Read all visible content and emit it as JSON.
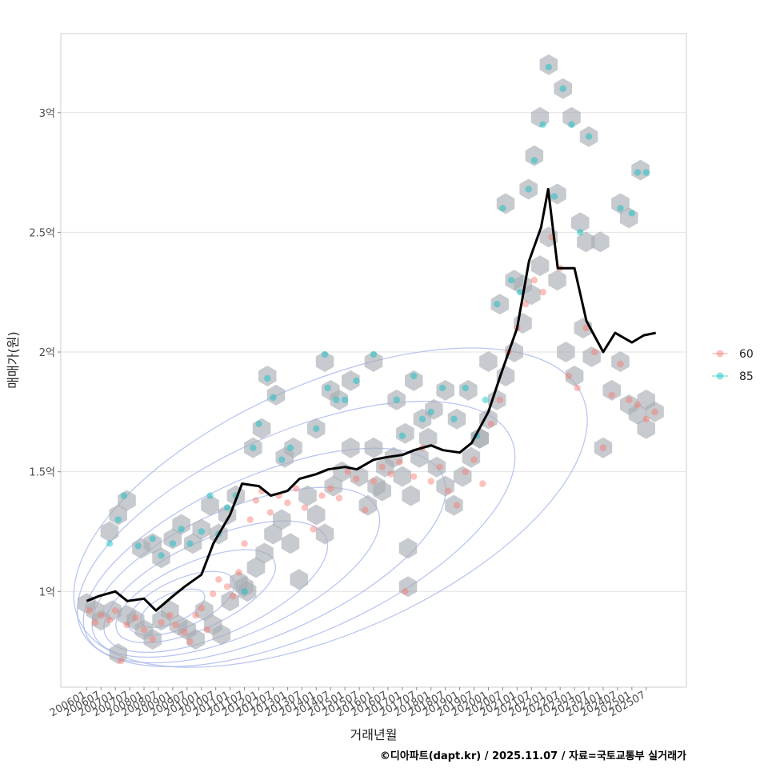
{
  "chart_data": {
    "type": "scatter",
    "xlabel": "거래년월",
    "ylabel": "매매가(원)",
    "caption": "©디아파트(dapt.kr) / 2025.11.07 / 자료=국토교통부 실거래가",
    "x_range": [
      "2006-01",
      "2025-11"
    ],
    "ylim": [
      0.6,
      3.33
    ],
    "y_ticks": [
      {
        "value": 1,
        "label": "1억"
      },
      {
        "value": 1.5,
        "label": "1.5억"
      },
      {
        "value": 2,
        "label": "2억"
      },
      {
        "value": 2.5,
        "label": "2.5억"
      },
      {
        "value": 3,
        "label": "3억"
      }
    ],
    "x_ticks": [
      "200601",
      "200607",
      "200701",
      "200707",
      "200801",
      "200807",
      "200901",
      "200907",
      "201001",
      "201007",
      "201101",
      "201107",
      "201201",
      "201207",
      "201301",
      "201307",
      "201401",
      "201407",
      "201501",
      "201507",
      "201601",
      "201607",
      "201701",
      "201707",
      "201801",
      "201807",
      "201901",
      "201907",
      "202001",
      "202007",
      "202101",
      "202107",
      "202201",
      "202207",
      "202301",
      "202307",
      "202401",
      "202407",
      "202501",
      "202507"
    ],
    "legend": [
      {
        "name": "60",
        "color": "#F8766D"
      },
      {
        "name": "85",
        "color": "#00BFC4"
      }
    ],
    "line_series": {
      "name": "moving-average",
      "color": "#000000",
      "x": [
        "2006-01",
        "2006-06",
        "2007-01",
        "2007-06",
        "2008-01",
        "2008-06",
        "2009-01",
        "2009-06",
        "2010-01",
        "2010-06",
        "2011-01",
        "2011-06",
        "2012-01",
        "2012-06",
        "2013-01",
        "2013-06",
        "2014-01",
        "2014-06",
        "2015-01",
        "2015-06",
        "2016-01",
        "2016-06",
        "2017-01",
        "2017-06",
        "2018-01",
        "2018-06",
        "2019-01",
        "2019-06",
        "2020-01",
        "2020-06",
        "2021-01",
        "2021-06",
        "2021-11",
        "2022-02",
        "2022-06",
        "2023-01",
        "2023-06",
        "2024-01",
        "2024-06",
        "2025-01",
        "2025-06",
        "2025-11"
      ],
      "y": [
        0.96,
        0.98,
        1.0,
        0.96,
        0.97,
        0.92,
        0.98,
        1.02,
        1.07,
        1.2,
        1.32,
        1.45,
        1.44,
        1.4,
        1.42,
        1.47,
        1.49,
        1.51,
        1.52,
        1.51,
        1.55,
        1.56,
        1.57,
        1.59,
        1.61,
        1.59,
        1.58,
        1.62,
        1.75,
        1.9,
        2.1,
        2.38,
        2.52,
        2.68,
        2.35,
        2.35,
        2.13,
        2.0,
        2.08,
        2.04,
        2.07,
        2.08
      ]
    },
    "series": [
      {
        "name": "60",
        "points": [
          [
            2006.1,
            0.92
          ],
          [
            2006.3,
            0.87
          ],
          [
            2006.5,
            0.9
          ],
          [
            2006.8,
            0.88
          ],
          [
            2007.0,
            0.92
          ],
          [
            2007.2,
            0.71
          ],
          [
            2007.4,
            0.86
          ],
          [
            2007.7,
            0.89
          ],
          [
            2008.0,
            0.84
          ],
          [
            2008.3,
            0.8
          ],
          [
            2008.6,
            0.87
          ],
          [
            2008.9,
            0.9
          ],
          [
            2009.1,
            0.86
          ],
          [
            2009.4,
            0.83
          ],
          [
            2009.6,
            0.79
          ],
          [
            2009.8,
            0.9
          ],
          [
            2010.0,
            0.93
          ],
          [
            2010.2,
            0.84
          ],
          [
            2010.4,
            0.99
          ],
          [
            2010.6,
            1.05
          ],
          [
            2010.9,
            1.02
          ],
          [
            2011.1,
            0.98
          ],
          [
            2011.3,
            1.08
          ],
          [
            2011.5,
            1.2
          ],
          [
            2011.7,
            1.3
          ],
          [
            2011.9,
            1.38
          ],
          [
            2012.1,
            1.42
          ],
          [
            2012.4,
            1.33
          ],
          [
            2012.7,
            1.4
          ],
          [
            2013.0,
            1.37
          ],
          [
            2013.3,
            1.43
          ],
          [
            2013.6,
            1.35
          ],
          [
            2013.9,
            1.26
          ],
          [
            2014.2,
            1.4
          ],
          [
            2014.5,
            1.43
          ],
          [
            2014.8,
            1.39
          ],
          [
            2015.1,
            1.5
          ],
          [
            2015.4,
            1.47
          ],
          [
            2015.7,
            1.34
          ],
          [
            2016.0,
            1.46
          ],
          [
            2016.3,
            1.52
          ],
          [
            2016.6,
            1.49
          ],
          [
            2016.9,
            1.54
          ],
          [
            2017.1,
            1.0
          ],
          [
            2017.4,
            1.48
          ],
          [
            2017.7,
            1.6
          ],
          [
            2018.0,
            1.46
          ],
          [
            2018.3,
            1.52
          ],
          [
            2018.6,
            1.42
          ],
          [
            2018.9,
            1.36
          ],
          [
            2019.2,
            1.5
          ],
          [
            2019.5,
            1.55
          ],
          [
            2019.8,
            1.45
          ],
          [
            2020.1,
            1.7
          ],
          [
            2020.4,
            1.8
          ],
          [
            2020.7,
            2.0
          ],
          [
            2021.0,
            2.1
          ],
          [
            2021.3,
            2.2
          ],
          [
            2021.6,
            2.3
          ],
          [
            2021.9,
            2.25
          ],
          [
            2022.2,
            2.48
          ],
          [
            2022.5,
            2.35
          ],
          [
            2022.8,
            1.9
          ],
          [
            2023.1,
            1.85
          ],
          [
            2023.4,
            2.1
          ],
          [
            2023.7,
            2.0
          ],
          [
            2024.0,
            1.6
          ],
          [
            2024.3,
            1.82
          ],
          [
            2024.6,
            1.95
          ],
          [
            2024.9,
            1.8
          ],
          [
            2025.2,
            1.78
          ],
          [
            2025.5,
            1.72
          ],
          [
            2025.8,
            1.75
          ]
        ]
      },
      {
        "name": "85",
        "points": [
          [
            2006.8,
            1.2
          ],
          [
            2007.1,
            1.3
          ],
          [
            2007.3,
            1.4
          ],
          [
            2007.8,
            1.19
          ],
          [
            2008.3,
            1.22
          ],
          [
            2008.6,
            1.15
          ],
          [
            2009.0,
            1.2
          ],
          [
            2009.3,
            1.26
          ],
          [
            2009.6,
            1.2
          ],
          [
            2010.0,
            1.25
          ],
          [
            2010.3,
            1.4
          ],
          [
            2010.6,
            1.24
          ],
          [
            2010.9,
            1.35
          ],
          [
            2011.2,
            1.4
          ],
          [
            2011.5,
            1.0
          ],
          [
            2011.8,
            1.6
          ],
          [
            2012.0,
            1.7
          ],
          [
            2012.3,
            1.89
          ],
          [
            2012.5,
            1.81
          ],
          [
            2012.8,
            1.55
          ],
          [
            2013.1,
            1.6
          ],
          [
            2014.0,
            1.68
          ],
          [
            2014.3,
            1.99
          ],
          [
            2014.4,
            1.85
          ],
          [
            2014.7,
            1.8
          ],
          [
            2015.0,
            1.8
          ],
          [
            2015.4,
            1.88
          ],
          [
            2016.0,
            1.99
          ],
          [
            2016.8,
            1.8
          ],
          [
            2017.0,
            1.65
          ],
          [
            2017.4,
            1.9
          ],
          [
            2017.7,
            1.72
          ],
          [
            2018.0,
            1.75
          ],
          [
            2018.4,
            1.85
          ],
          [
            2018.8,
            1.72
          ],
          [
            2019.2,
            1.85
          ],
          [
            2019.6,
            1.65
          ],
          [
            2019.9,
            1.8
          ],
          [
            2020.3,
            2.2
          ],
          [
            2020.5,
            2.6
          ],
          [
            2020.8,
            2.3
          ],
          [
            2021.1,
            2.25
          ],
          [
            2021.4,
            2.68
          ],
          [
            2021.6,
            2.8
          ],
          [
            2021.9,
            2.95
          ],
          [
            2022.1,
            3.19
          ],
          [
            2022.3,
            2.65
          ],
          [
            2022.6,
            3.1
          ],
          [
            2022.9,
            2.95
          ],
          [
            2023.2,
            2.5
          ],
          [
            2023.5,
            2.9
          ],
          [
            2024.6,
            2.6
          ],
          [
            2025.0,
            2.58
          ],
          [
            2025.2,
            2.75
          ],
          [
            2025.5,
            2.75
          ]
        ]
      }
    ],
    "hexbins": [
      [
        2006.0,
        0.95
      ],
      [
        2006.3,
        0.92
      ],
      [
        2006.5,
        0.88
      ],
      [
        2006.9,
        0.92
      ],
      [
        2007.1,
        0.74
      ],
      [
        2007.4,
        0.9
      ],
      [
        2007.7,
        0.88
      ],
      [
        2008.0,
        0.84
      ],
      [
        2008.3,
        0.8
      ],
      [
        2008.6,
        0.88
      ],
      [
        2008.9,
        0.92
      ],
      [
        2009.2,
        0.86
      ],
      [
        2009.5,
        0.84
      ],
      [
        2009.8,
        0.8
      ],
      [
        2010.1,
        0.92
      ],
      [
        2010.4,
        0.86
      ],
      [
        2010.7,
        0.82
      ],
      [
        2011.0,
        0.96
      ],
      [
        2011.3,
        1.04
      ],
      [
        2011.6,
        1.0
      ],
      [
        2011.9,
        1.1
      ],
      [
        2012.2,
        1.16
      ],
      [
        2012.5,
        1.24
      ],
      [
        2012.8,
        1.3
      ],
      [
        2013.1,
        1.2
      ],
      [
        2013.4,
        1.05
      ],
      [
        2013.7,
        1.4
      ],
      [
        2014.0,
        1.32
      ],
      [
        2014.3,
        1.24
      ],
      [
        2014.6,
        1.44
      ],
      [
        2014.9,
        1.5
      ],
      [
        2015.2,
        1.6
      ],
      [
        2015.5,
        1.48
      ],
      [
        2015.8,
        1.36
      ],
      [
        2016.1,
        1.44
      ],
      [
        2016.4,
        1.52
      ],
      [
        2016.7,
        1.56
      ],
      [
        2017.0,
        1.48
      ],
      [
        2017.3,
        1.4
      ],
      [
        2017.6,
        1.56
      ],
      [
        2017.9,
        1.64
      ],
      [
        2018.2,
        1.52
      ],
      [
        2018.5,
        1.44
      ],
      [
        2018.8,
        1.36
      ],
      [
        2019.1,
        1.48
      ],
      [
        2019.4,
        1.56
      ],
      [
        2019.7,
        1.64
      ],
      [
        2020.0,
        1.72
      ],
      [
        2020.3,
        1.8
      ],
      [
        2020.6,
        1.9
      ],
      [
        2020.9,
        2.0
      ],
      [
        2021.2,
        2.12
      ],
      [
        2021.5,
        2.24
      ],
      [
        2021.8,
        2.36
      ],
      [
        2022.1,
        2.48
      ],
      [
        2022.4,
        2.3
      ],
      [
        2022.7,
        2.0
      ],
      [
        2023.0,
        1.9
      ],
      [
        2023.3,
        2.1
      ],
      [
        2023.6,
        1.98
      ],
      [
        2024.0,
        1.6
      ],
      [
        2024.3,
        1.84
      ],
      [
        2024.6,
        1.96
      ],
      [
        2024.9,
        1.78
      ],
      [
        2025.2,
        1.74
      ],
      [
        2025.5,
        1.8
      ],
      [
        2025.8,
        1.75
      ],
      [
        2006.8,
        1.25
      ],
      [
        2007.1,
        1.32
      ],
      [
        2007.4,
        1.38
      ],
      [
        2007.9,
        1.18
      ],
      [
        2008.3,
        1.2
      ],
      [
        2008.6,
        1.14
      ],
      [
        2009.0,
        1.22
      ],
      [
        2009.3,
        1.28
      ],
      [
        2009.7,
        1.2
      ],
      [
        2010.0,
        1.26
      ],
      [
        2010.3,
        1.36
      ],
      [
        2010.6,
        1.24
      ],
      [
        2010.9,
        1.32
      ],
      [
        2011.2,
        1.4
      ],
      [
        2011.5,
        1.02
      ],
      [
        2011.8,
        1.6
      ],
      [
        2012.1,
        1.68
      ],
      [
        2012.3,
        1.9
      ],
      [
        2012.6,
        1.82
      ],
      [
        2012.9,
        1.56
      ],
      [
        2013.2,
        1.6
      ],
      [
        2014.0,
        1.68
      ],
      [
        2014.3,
        1.96
      ],
      [
        2014.5,
        1.84
      ],
      [
        2014.8,
        1.8
      ],
      [
        2015.2,
        1.88
      ],
      [
        2016.0,
        1.96
      ],
      [
        2016.8,
        1.8
      ],
      [
        2017.1,
        1.66
      ],
      [
        2017.4,
        1.88
      ],
      [
        2017.7,
        1.72
      ],
      [
        2018.1,
        1.76
      ],
      [
        2018.5,
        1.84
      ],
      [
        2018.9,
        1.72
      ],
      [
        2019.3,
        1.84
      ],
      [
        2019.7,
        1.64
      ],
      [
        2020.0,
        1.96
      ],
      [
        2020.4,
        2.2
      ],
      [
        2020.6,
        2.62
      ],
      [
        2020.9,
        2.3
      ],
      [
        2021.2,
        2.28
      ],
      [
        2021.4,
        2.68
      ],
      [
        2021.6,
        2.82
      ],
      [
        2021.8,
        2.98
      ],
      [
        2022.1,
        3.2
      ],
      [
        2022.4,
        2.66
      ],
      [
        2022.6,
        3.1
      ],
      [
        2022.9,
        2.98
      ],
      [
        2023.2,
        2.54
      ],
      [
        2023.5,
        2.9
      ],
      [
        2023.4,
        2.46
      ],
      [
        2023.9,
        2.46
      ],
      [
        2024.6,
        2.62
      ],
      [
        2024.9,
        2.56
      ],
      [
        2025.3,
        2.76
      ],
      [
        2025.5,
        1.68
      ],
      [
        2017.2,
        1.18
      ],
      [
        2017.2,
        1.02
      ],
      [
        2016.0,
        1.6
      ],
      [
        2016.3,
        1.42
      ]
    ],
    "density_contours": [
      {
        "center": [
          2009.0,
          0.93
        ],
        "rx": 1.2,
        "ry": 0.06
      },
      {
        "center": [
          2009.3,
          0.95
        ],
        "rx": 2.0,
        "ry": 0.1
      },
      {
        "center": [
          2009.8,
          0.98
        ],
        "rx": 3.0,
        "ry": 0.14
      },
      {
        "center": [
          2010.5,
          1.02
        ],
        "rx": 4.2,
        "ry": 0.2
      },
      {
        "center": [
          2011.2,
          1.08
        ],
        "rx": 5.4,
        "ry": 0.26
      },
      {
        "center": [
          2012.2,
          1.15
        ],
        "rx": 6.8,
        "ry": 0.33
      },
      {
        "center": [
          2013.3,
          1.24
        ],
        "rx": 8.2,
        "ry": 0.42
      },
      {
        "center": [
          2014.5,
          1.35
        ],
        "rx": 9.6,
        "ry": 0.52
      }
    ]
  }
}
